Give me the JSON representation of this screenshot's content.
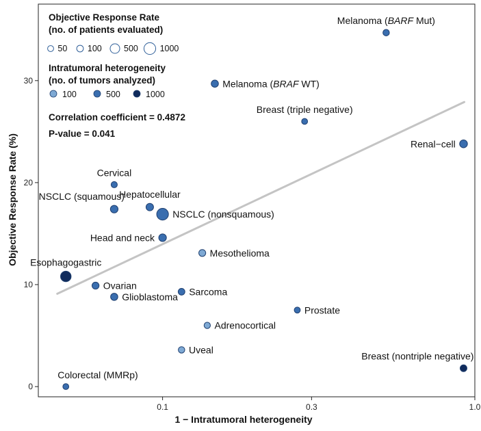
{
  "chart_data": {
    "type": "scatter",
    "title": "",
    "xlabel": "1 − Intratumoral heterogeneity",
    "ylabel": "Objective Response Rate (%)",
    "x_scale": "log",
    "xlim": [
      0.04,
      1.0
    ],
    "ylim": [
      -1.0,
      37.5
    ],
    "x_ticks": [
      {
        "value": 0.1,
        "label": "0.1"
      },
      {
        "value": 0.3,
        "label": "0.3"
      },
      {
        "value": 1.0,
        "label": "1.0"
      }
    ],
    "y_ticks": [
      {
        "value": 0,
        "label": "0"
      },
      {
        "value": 10,
        "label": "10"
      },
      {
        "value": 20,
        "label": "20"
      },
      {
        "value": 30,
        "label": "30"
      }
    ],
    "grid": false,
    "points": [
      {
        "label": "Melanoma (",
        "label_italic": "BARF",
        "label_suffix": " Mut)",
        "x": 0.52,
        "y": 34.7,
        "patients": 80,
        "tumors": 500,
        "label_pos": "above"
      },
      {
        "label": "Melanoma (",
        "label_italic": "BRAF",
        "label_suffix": " WT)",
        "x": 0.147,
        "y": 29.7,
        "patients": 150,
        "tumors": 500,
        "label_pos": "right"
      },
      {
        "label": "Breast (triple negative)",
        "x": 0.285,
        "y": 26.0,
        "patients": 45,
        "tumors": 500,
        "label_pos": "above"
      },
      {
        "label": "Renal−cell",
        "x": 0.92,
        "y": 23.8,
        "patients": 220,
        "tumors": 500,
        "label_pos": "left"
      },
      {
        "label": "Cervical",
        "x": 0.07,
        "y": 19.8,
        "patients": 60,
        "tumors": 500,
        "label_pos": "above"
      },
      {
        "label": "NSCLC (squamous)",
        "x": 0.07,
        "y": 17.4,
        "patients": 200,
        "tumors": 500,
        "label_pos": "above-left"
      },
      {
        "label": "Hepatocellular",
        "x": 0.091,
        "y": 17.6,
        "patients": 180,
        "tumors": 500,
        "label_pos": "above"
      },
      {
        "label": "NSCLC (nonsquamous)",
        "x": 0.1,
        "y": 16.9,
        "patients": 1000,
        "tumors": 500,
        "label_pos": "right"
      },
      {
        "label": "Head and neck",
        "x": 0.1,
        "y": 14.6,
        "patients": 200,
        "tumors": 500,
        "label_pos": "left"
      },
      {
        "label": "Mesothelioma",
        "x": 0.134,
        "y": 13.1,
        "patients": 120,
        "tumors": 100,
        "label_pos": "right"
      },
      {
        "label": "Esophagogastric",
        "x": 0.049,
        "y": 10.8,
        "patients": 700,
        "tumors": 1000,
        "label_pos": "above"
      },
      {
        "label": "Ovarian",
        "x": 0.061,
        "y": 9.9,
        "patients": 130,
        "tumors": 500,
        "label_pos": "right"
      },
      {
        "label": "Glioblastoma",
        "x": 0.07,
        "y": 8.8,
        "patients": 150,
        "tumors": 500,
        "label_pos": "right"
      },
      {
        "label": "Sarcoma",
        "x": 0.115,
        "y": 9.3,
        "patients": 100,
        "tumors": 500,
        "label_pos": "right"
      },
      {
        "label": "Prostate",
        "x": 0.27,
        "y": 7.5,
        "patients": 50,
        "tumors": 500,
        "label_pos": "right"
      },
      {
        "label": "Adrenocortical",
        "x": 0.139,
        "y": 6.0,
        "patients": 70,
        "tumors": 100,
        "label_pos": "right"
      },
      {
        "label": "Uveal",
        "x": 0.115,
        "y": 3.6,
        "patients": 80,
        "tumors": 100,
        "label_pos": "right"
      },
      {
        "label": "Breast (nontriple negative)",
        "x": 0.92,
        "y": 1.8,
        "patients": 110,
        "tumors": 1000,
        "label_pos": "above-left"
      },
      {
        "label": "Colorectal (MMRp)",
        "x": 0.049,
        "y": 0.0,
        "patients": 45,
        "tumors": 500,
        "label_pos": "above-right"
      }
    ],
    "trend_line": {
      "x": [
        0.046,
        0.925
      ],
      "y": [
        9.1,
        27.9
      ],
      "color": "#c4c4c4"
    },
    "legend": {
      "placement": "top-left",
      "size_title_line1": "Objective Response Rate",
      "size_title_line2": "(no. of patients evaluated)",
      "size_entries": [
        {
          "label": "50",
          "value": 50
        },
        {
          "label": "100",
          "value": 100
        },
        {
          "label": "500",
          "value": 500
        },
        {
          "label": "1000",
          "value": 1000
        }
      ],
      "color_title_line1": "Intratumoral heterogeneity",
      "color_title_line2": "(no. of tumors analyzed)",
      "color_entries": [
        {
          "label": "100",
          "color": "#7ea9d4"
        },
        {
          "label": "500",
          "color": "#3a6eaf"
        },
        {
          "label": "1000",
          "color": "#102b5c"
        }
      ]
    },
    "stats": {
      "correlation": "Correlation coefficient = 0.4872",
      "pvalue": "P-value = 0.041"
    },
    "colors": {
      "tumors_100": "#7ea9d4",
      "tumors_500": "#3a6eaf",
      "tumors_1000": "#102b5c",
      "point_stroke": "#1f3f6f",
      "legend_size_stroke": "#2f5f99"
    }
  }
}
